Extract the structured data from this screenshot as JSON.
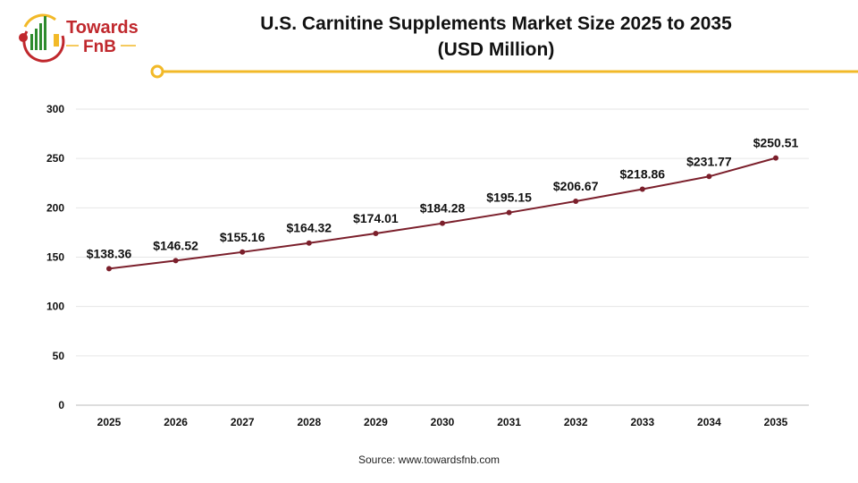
{
  "logo": {
    "line1": "Towards",
    "line2": "FnB"
  },
  "colors": {
    "line": "#7b1f2b",
    "accent": "#f2b928",
    "logo_red": "#c0282d",
    "logo_green": "#2e8b2e"
  },
  "chart_data": {
    "type": "line",
    "title": "U.S. Carnitine Supplements Market Size 2025 to 2035",
    "subtitle": "(USD Million)",
    "xlabel": "",
    "ylabel": "",
    "categories": [
      "2025",
      "2026",
      "2027",
      "2028",
      "2029",
      "2030",
      "2031",
      "2032",
      "2033",
      "2034",
      "2035"
    ],
    "values": [
      138.36,
      146.52,
      155.16,
      164.32,
      174.01,
      184.28,
      195.15,
      206.67,
      218.86,
      231.77,
      250.51
    ],
    "data_labels": [
      "$138.36",
      "$146.52",
      "$155.16",
      "$164.32",
      "$174.01",
      "$184.28",
      "$195.15",
      "$206.67",
      "$218.86",
      "$231.77",
      "$250.51"
    ],
    "ylim": [
      0,
      300
    ],
    "yticks": [
      0,
      50,
      100,
      150,
      200,
      250,
      300
    ],
    "grid": true,
    "legend": "none"
  },
  "source": "Source: www.towardsfnb.com"
}
